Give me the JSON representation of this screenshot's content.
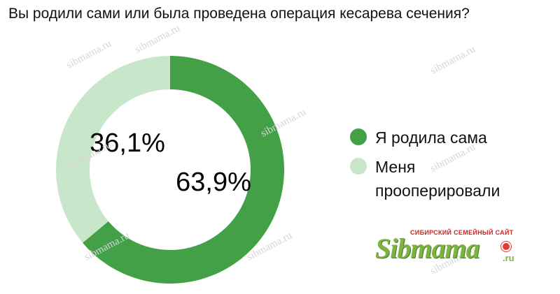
{
  "chart_data": {
    "type": "pie",
    "title": "Вы родили сами или была проведена операция кесарева сечения?",
    "categories": [
      "Я родила сама",
      "Меня прооперировали"
    ],
    "values": [
      63.9,
      36.1
    ],
    "value_labels": [
      "63,9%",
      "36,1%"
    ],
    "colors": [
      "#43a047",
      "#c8e6c9"
    ],
    "legend_position": "right"
  },
  "watermark_text": "sibmama.ru",
  "logo": {
    "tagline": "СИБИРСКИЙ СЕМЕЙНЫЙ САЙТ",
    "word": "Sibmama",
    "suffix": ".ru"
  }
}
